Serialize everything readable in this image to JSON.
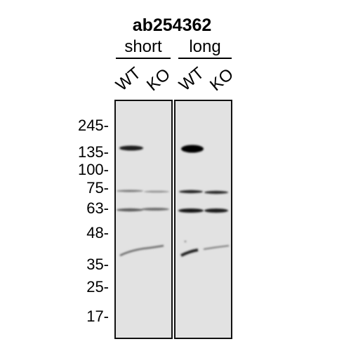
{
  "title": "ab254362",
  "exposures": [
    {
      "label": "short",
      "lanes": [
        "WT",
        "KO"
      ]
    },
    {
      "label": "long",
      "lanes": [
        "WT",
        "KO"
      ]
    }
  ],
  "markers": [
    "245-",
    "135-",
    "100-",
    "75-",
    "63-",
    "48-",
    "35-",
    "25-",
    "17-"
  ]
}
